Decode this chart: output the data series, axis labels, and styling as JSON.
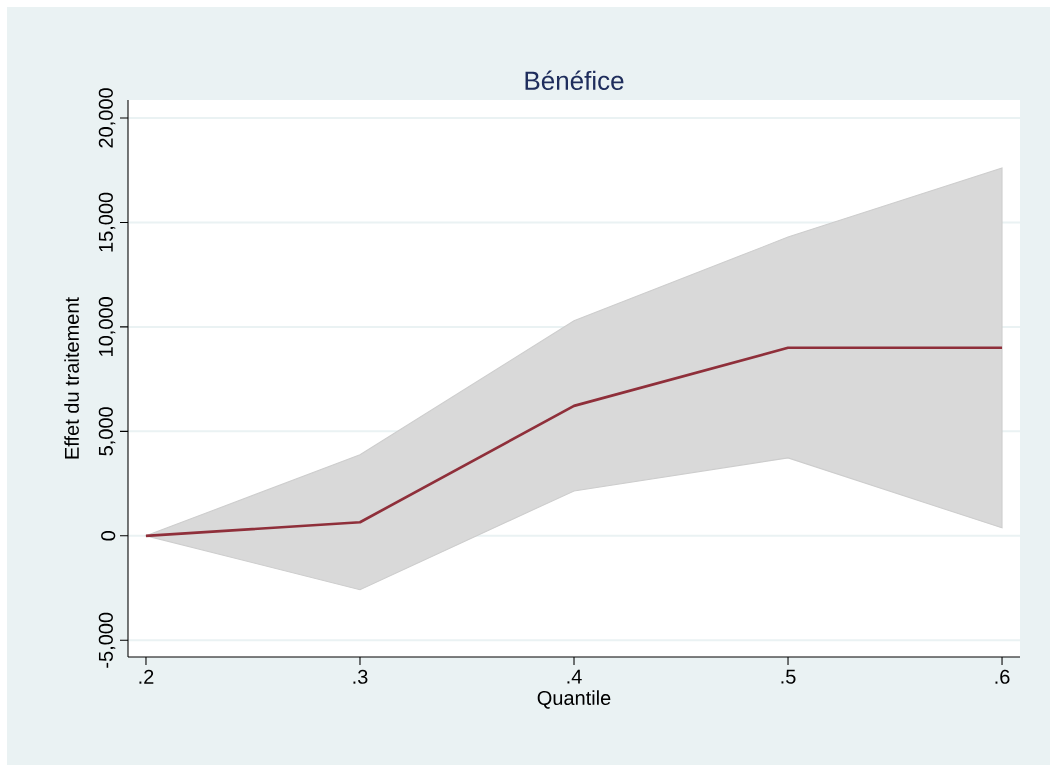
{
  "chart_data": {
    "type": "line",
    "title": "Bénéfice",
    "xlabel": "Quantile",
    "ylabel": "Effet du traitement",
    "x": [
      0.2,
      0.3,
      0.4,
      0.5,
      0.6
    ],
    "series": [
      {
        "color": "#8f2f3a",
        "values": [
          0,
          650,
          6220,
          9000,
          9000
        ],
        "lower": [
          0,
          -2580,
          2150,
          3730,
          380
        ],
        "upper": [
          0,
          3880,
          10290,
          14300,
          17600
        ]
      }
    ],
    "xlim": [
      0.1916,
      0.6084
    ],
    "ylim": [
      -5800,
      20860
    ],
    "xticks": [
      {
        "value": 0.2,
        "label": ".2"
      },
      {
        "value": 0.3,
        "label": ".3"
      },
      {
        "value": 0.4,
        "label": ".4"
      },
      {
        "value": 0.5,
        "label": ".5"
      },
      {
        "value": 0.6,
        "label": ".6"
      }
    ],
    "yticks": [
      {
        "value": -5000,
        "label": "-5,000"
      },
      {
        "value": 0,
        "label": "0"
      },
      {
        "value": 5000,
        "label": "5,000"
      },
      {
        "value": 10000,
        "label": "10,000"
      },
      {
        "value": 15000,
        "label": "15,000"
      },
      {
        "value": 20000,
        "label": "20,000"
      }
    ],
    "grid": "y",
    "marker": "none",
    "line_style": "solid"
  }
}
